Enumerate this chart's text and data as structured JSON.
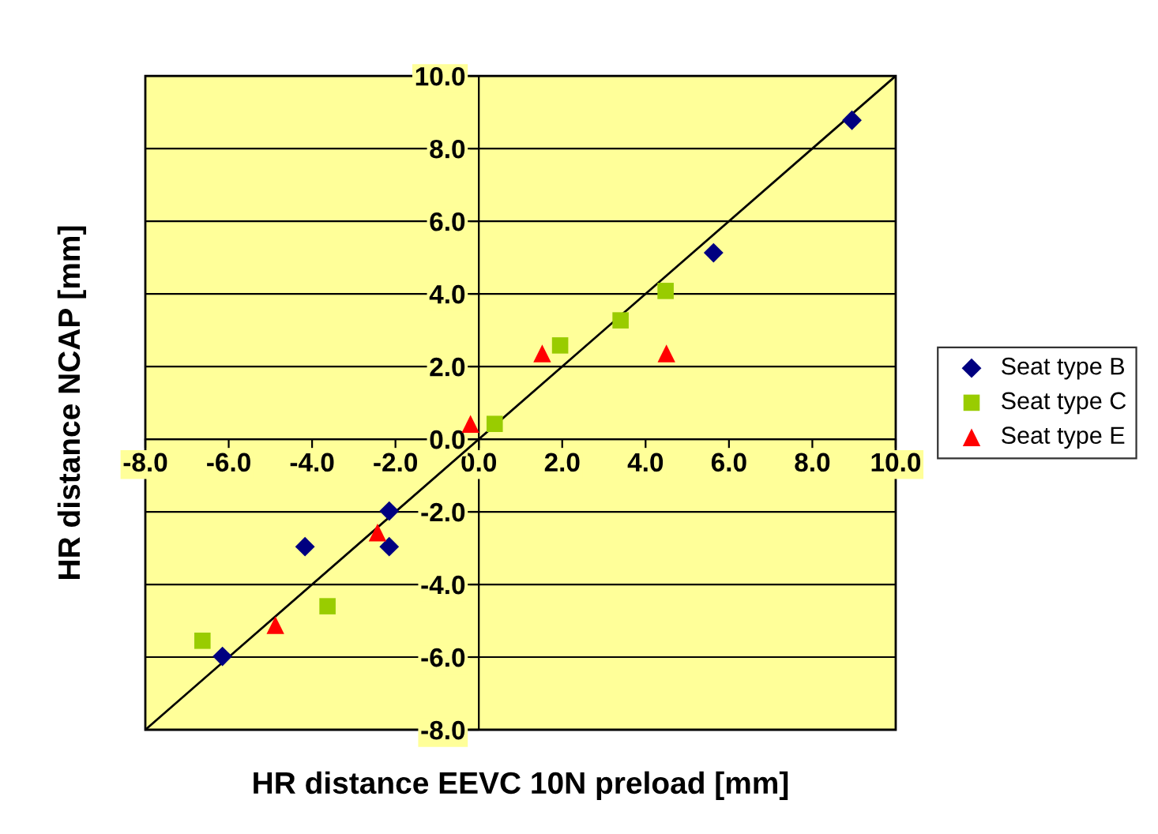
{
  "chart_data": {
    "type": "scatter",
    "xlabel": "HR distance EEVC 10N preload [mm]",
    "ylabel": "HR distance NCAP [mm]",
    "xlim": [
      -8,
      10
    ],
    "ylim": [
      -8,
      10
    ],
    "xticks": [
      {
        "value": -8,
        "label": "-8.0"
      },
      {
        "value": -6,
        "label": "-6.0"
      },
      {
        "value": -4,
        "label": "-4.0"
      },
      {
        "value": -2,
        "label": "-2.0"
      },
      {
        "value": 0,
        "label": "0.0"
      },
      {
        "value": 2,
        "label": "2.0"
      },
      {
        "value": 4,
        "label": "4.0"
      },
      {
        "value": 6,
        "label": "6.0"
      },
      {
        "value": 8,
        "label": "8.0"
      },
      {
        "value": 10,
        "label": "10.0"
      }
    ],
    "yticks": [
      {
        "value": -8,
        "label": "-8.0"
      },
      {
        "value": -6,
        "label": "-6.0"
      },
      {
        "value": -4,
        "label": "-4.0"
      },
      {
        "value": -2,
        "label": "-2.0"
      },
      {
        "value": 0,
        "label": "0.0"
      },
      {
        "value": 2,
        "label": "2.0"
      },
      {
        "value": 4,
        "label": "4.0"
      },
      {
        "value": 6,
        "label": "6.0"
      },
      {
        "value": 8,
        "label": "8.0"
      },
      {
        "value": 10,
        "label": "10.0"
      }
    ],
    "grid": "y",
    "legend": "right",
    "series": [
      {
        "name": "Seat type B",
        "color": "#000080",
        "marker": "diamond",
        "x": [
          8.95,
          5.63,
          -2.15,
          -2.15,
          -4.17,
          -6.15
        ],
        "values": [
          8.78,
          5.13,
          -1.98,
          -2.96,
          -2.96,
          -5.98
        ]
      },
      {
        "name": "Seat type C",
        "color": "#99cc00",
        "marker": "square",
        "x": [
          -6.63,
          -3.63,
          0.38,
          1.95,
          3.4,
          4.48
        ],
        "values": [
          -5.55,
          -4.6,
          0.42,
          2.58,
          3.27,
          4.08
        ]
      },
      {
        "name": "Seat type E",
        "color": "#ff0000",
        "marker": "triangle",
        "x": [
          -0.2,
          1.52,
          4.5,
          -2.43,
          -4.88
        ],
        "values": [
          0.42,
          2.36,
          2.36,
          -2.57,
          -5.12
        ]
      },
      {
        "type": "line",
        "color": "#000000",
        "x": [
          -8,
          10
        ],
        "values": [
          -8,
          10
        ]
      }
    ]
  }
}
